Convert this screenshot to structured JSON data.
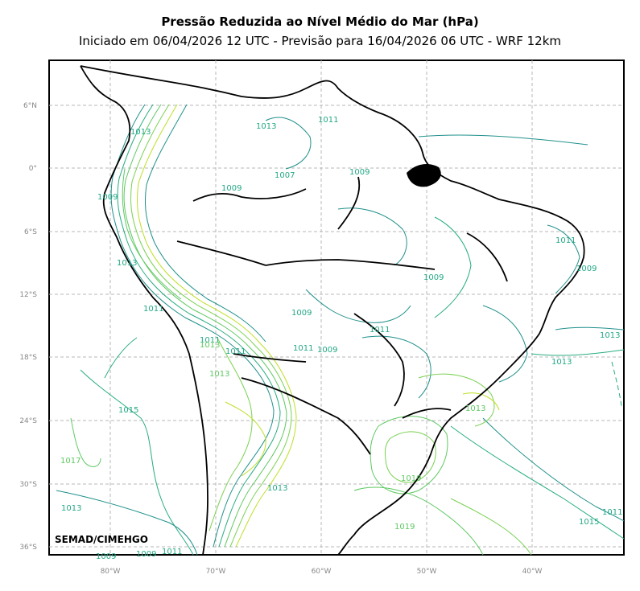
{
  "title": "Pressão Reduzida ao Nível Médio do Mar (hPa)",
  "subtitle": "Iniciado em 06/04/2026 12 UTC - Previsão para 16/04/2026 06 UTC - WRF 12km",
  "credit": "SEMAD/CIMEHGO",
  "lat_ticks": [
    "6°N",
    "0°",
    "6°S",
    "12°S",
    "18°S",
    "24°S",
    "30°S",
    "36°S"
  ],
  "lon_ticks": [
    "80°W",
    "70°W",
    "60°W",
    "50°W",
    "40°W"
  ],
  "isobar_labels": [
    "1011",
    "1013",
    "1013",
    "1009",
    "1007",
    "1009",
    "1009",
    "1009",
    "1013",
    "1011",
    "1009",
    "1009",
    "1011",
    "1011",
    "1013",
    "1009",
    "1011",
    "1011",
    "1013",
    "1013",
    "1011",
    "1015",
    "1017",
    "1013",
    "1019",
    "1013",
    "1015",
    "1011",
    "1019",
    "1009",
    "1011",
    "1009",
    "1013",
    "1013"
  ],
  "colors": {
    "isobar_low": "#21918c",
    "isobar_mid": "#27ad81",
    "isobar_high": "#7ad151",
    "isobar_highest": "#bddf26",
    "coast": "#000000",
    "grid": "#b0b0b0"
  }
}
